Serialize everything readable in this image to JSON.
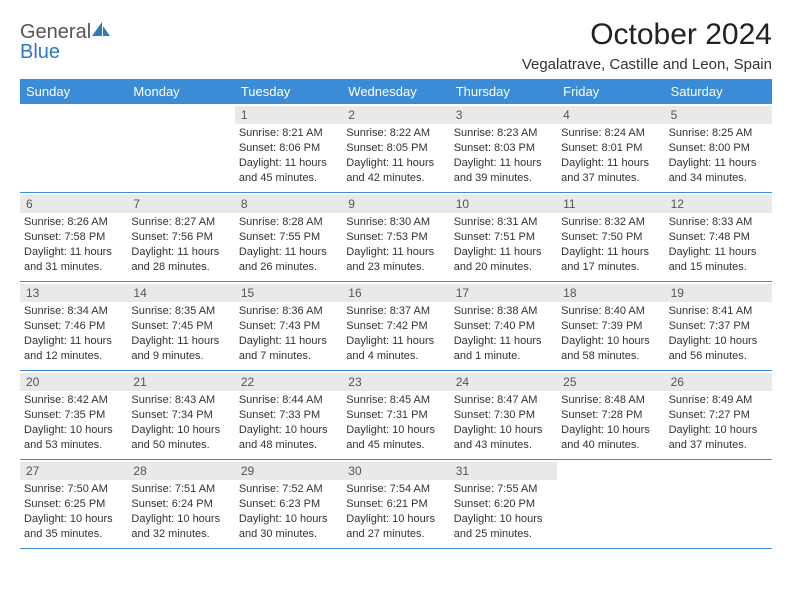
{
  "logo": {
    "word1": "General",
    "word2": "Blue"
  },
  "title": "October 2024",
  "location": "Vegalatrave, Castille and Leon, Spain",
  "colors": {
    "header_bg": "#3b8cd7",
    "header_text": "#ffffff",
    "daynum_bg": "#e9e9e9",
    "divider": "#3b8cd7",
    "logo_blue": "#2e78c2"
  },
  "day_names": [
    "Sunday",
    "Monday",
    "Tuesday",
    "Wednesday",
    "Thursday",
    "Friday",
    "Saturday"
  ],
  "weeks": [
    [
      {
        "day": "",
        "sunrise": "",
        "sunset": "",
        "daylight": ""
      },
      {
        "day": "",
        "sunrise": "",
        "sunset": "",
        "daylight": ""
      },
      {
        "day": "1",
        "sunrise": "Sunrise: 8:21 AM",
        "sunset": "Sunset: 8:06 PM",
        "daylight": "Daylight: 11 hours and 45 minutes."
      },
      {
        "day": "2",
        "sunrise": "Sunrise: 8:22 AM",
        "sunset": "Sunset: 8:05 PM",
        "daylight": "Daylight: 11 hours and 42 minutes."
      },
      {
        "day": "3",
        "sunrise": "Sunrise: 8:23 AM",
        "sunset": "Sunset: 8:03 PM",
        "daylight": "Daylight: 11 hours and 39 minutes."
      },
      {
        "day": "4",
        "sunrise": "Sunrise: 8:24 AM",
        "sunset": "Sunset: 8:01 PM",
        "daylight": "Daylight: 11 hours and 37 minutes."
      },
      {
        "day": "5",
        "sunrise": "Sunrise: 8:25 AM",
        "sunset": "Sunset: 8:00 PM",
        "daylight": "Daylight: 11 hours and 34 minutes."
      }
    ],
    [
      {
        "day": "6",
        "sunrise": "Sunrise: 8:26 AM",
        "sunset": "Sunset: 7:58 PM",
        "daylight": "Daylight: 11 hours and 31 minutes."
      },
      {
        "day": "7",
        "sunrise": "Sunrise: 8:27 AM",
        "sunset": "Sunset: 7:56 PM",
        "daylight": "Daylight: 11 hours and 28 minutes."
      },
      {
        "day": "8",
        "sunrise": "Sunrise: 8:28 AM",
        "sunset": "Sunset: 7:55 PM",
        "daylight": "Daylight: 11 hours and 26 minutes."
      },
      {
        "day": "9",
        "sunrise": "Sunrise: 8:30 AM",
        "sunset": "Sunset: 7:53 PM",
        "daylight": "Daylight: 11 hours and 23 minutes."
      },
      {
        "day": "10",
        "sunrise": "Sunrise: 8:31 AM",
        "sunset": "Sunset: 7:51 PM",
        "daylight": "Daylight: 11 hours and 20 minutes."
      },
      {
        "day": "11",
        "sunrise": "Sunrise: 8:32 AM",
        "sunset": "Sunset: 7:50 PM",
        "daylight": "Daylight: 11 hours and 17 minutes."
      },
      {
        "day": "12",
        "sunrise": "Sunrise: 8:33 AM",
        "sunset": "Sunset: 7:48 PM",
        "daylight": "Daylight: 11 hours and 15 minutes."
      }
    ],
    [
      {
        "day": "13",
        "sunrise": "Sunrise: 8:34 AM",
        "sunset": "Sunset: 7:46 PM",
        "daylight": "Daylight: 11 hours and 12 minutes."
      },
      {
        "day": "14",
        "sunrise": "Sunrise: 8:35 AM",
        "sunset": "Sunset: 7:45 PM",
        "daylight": "Daylight: 11 hours and 9 minutes."
      },
      {
        "day": "15",
        "sunrise": "Sunrise: 8:36 AM",
        "sunset": "Sunset: 7:43 PM",
        "daylight": "Daylight: 11 hours and 7 minutes."
      },
      {
        "day": "16",
        "sunrise": "Sunrise: 8:37 AM",
        "sunset": "Sunset: 7:42 PM",
        "daylight": "Daylight: 11 hours and 4 minutes."
      },
      {
        "day": "17",
        "sunrise": "Sunrise: 8:38 AM",
        "sunset": "Sunset: 7:40 PM",
        "daylight": "Daylight: 11 hours and 1 minute."
      },
      {
        "day": "18",
        "sunrise": "Sunrise: 8:40 AM",
        "sunset": "Sunset: 7:39 PM",
        "daylight": "Daylight: 10 hours and 58 minutes."
      },
      {
        "day": "19",
        "sunrise": "Sunrise: 8:41 AM",
        "sunset": "Sunset: 7:37 PM",
        "daylight": "Daylight: 10 hours and 56 minutes."
      }
    ],
    [
      {
        "day": "20",
        "sunrise": "Sunrise: 8:42 AM",
        "sunset": "Sunset: 7:35 PM",
        "daylight": "Daylight: 10 hours and 53 minutes."
      },
      {
        "day": "21",
        "sunrise": "Sunrise: 8:43 AM",
        "sunset": "Sunset: 7:34 PM",
        "daylight": "Daylight: 10 hours and 50 minutes."
      },
      {
        "day": "22",
        "sunrise": "Sunrise: 8:44 AM",
        "sunset": "Sunset: 7:33 PM",
        "daylight": "Daylight: 10 hours and 48 minutes."
      },
      {
        "day": "23",
        "sunrise": "Sunrise: 8:45 AM",
        "sunset": "Sunset: 7:31 PM",
        "daylight": "Daylight: 10 hours and 45 minutes."
      },
      {
        "day": "24",
        "sunrise": "Sunrise: 8:47 AM",
        "sunset": "Sunset: 7:30 PM",
        "daylight": "Daylight: 10 hours and 43 minutes."
      },
      {
        "day": "25",
        "sunrise": "Sunrise: 8:48 AM",
        "sunset": "Sunset: 7:28 PM",
        "daylight": "Daylight: 10 hours and 40 minutes."
      },
      {
        "day": "26",
        "sunrise": "Sunrise: 8:49 AM",
        "sunset": "Sunset: 7:27 PM",
        "daylight": "Daylight: 10 hours and 37 minutes."
      }
    ],
    [
      {
        "day": "27",
        "sunrise": "Sunrise: 7:50 AM",
        "sunset": "Sunset: 6:25 PM",
        "daylight": "Daylight: 10 hours and 35 minutes."
      },
      {
        "day": "28",
        "sunrise": "Sunrise: 7:51 AM",
        "sunset": "Sunset: 6:24 PM",
        "daylight": "Daylight: 10 hours and 32 minutes."
      },
      {
        "day": "29",
        "sunrise": "Sunrise: 7:52 AM",
        "sunset": "Sunset: 6:23 PM",
        "daylight": "Daylight: 10 hours and 30 minutes."
      },
      {
        "day": "30",
        "sunrise": "Sunrise: 7:54 AM",
        "sunset": "Sunset: 6:21 PM",
        "daylight": "Daylight: 10 hours and 27 minutes."
      },
      {
        "day": "31",
        "sunrise": "Sunrise: 7:55 AM",
        "sunset": "Sunset: 6:20 PM",
        "daylight": "Daylight: 10 hours and 25 minutes."
      },
      {
        "day": "",
        "sunrise": "",
        "sunset": "",
        "daylight": ""
      },
      {
        "day": "",
        "sunrise": "",
        "sunset": "",
        "daylight": ""
      }
    ]
  ]
}
